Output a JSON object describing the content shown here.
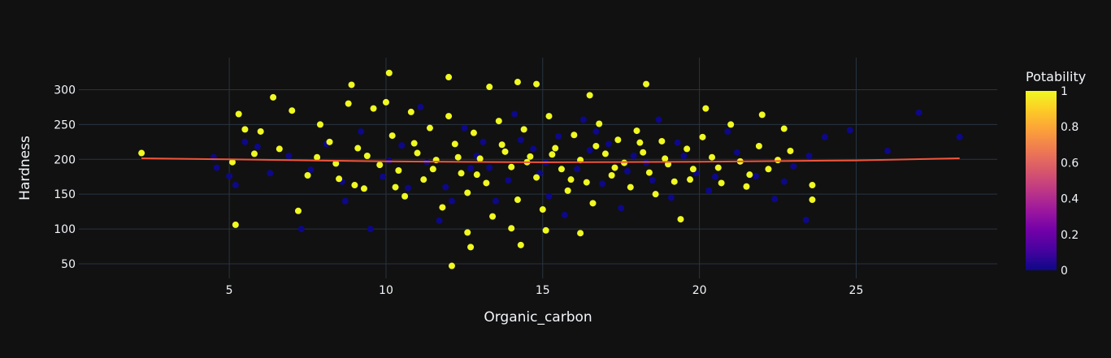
{
  "chart_data": {
    "type": "scatter",
    "xlabel": "Organic_carbon",
    "ylabel": "Hardness",
    "xlim": [
      0.2,
      29.5
    ],
    "ylim": [
      29,
      346
    ],
    "x_ticks": [
      5,
      10,
      15,
      20,
      25
    ],
    "y_ticks": [
      50,
      100,
      150,
      200,
      250,
      300
    ],
    "grid": true,
    "colorbar": {
      "title": "Potability",
      "ticks": [
        "0",
        "0.2",
        "0.4",
        "0.6",
        "0.8",
        "1"
      ],
      "tick_values": [
        0,
        0.2,
        0.4,
        0.6,
        0.8,
        1
      ],
      "colorscale": [
        "#0d0887",
        "#46039f",
        "#7201a8",
        "#9c179e",
        "#bd3786",
        "#d8576b",
        "#ed7953",
        "#fb9f3a",
        "#fdca26",
        "#f0f921"
      ]
    },
    "point_colors": {
      "0": "#0d0887",
      "1": "#f0f921"
    },
    "trendline": {
      "color": "#ef553b",
      "points": [
        [
          2.2,
          201.5
        ],
        [
          5,
          200
        ],
        [
          10,
          197
        ],
        [
          15,
          195.8
        ],
        [
          20,
          196.5
        ],
        [
          25,
          198.5
        ],
        [
          28.3,
          201.5
        ]
      ]
    },
    "series": [
      {
        "potability": 1,
        "points": [
          [
            2.2,
            209
          ],
          [
            5.2,
            106
          ],
          [
            5.3,
            265
          ],
          [
            5.5,
            243
          ],
          [
            6.0,
            240
          ],
          [
            6.4,
            289
          ],
          [
            7.0,
            270
          ],
          [
            7.2,
            126
          ],
          [
            8.9,
            307
          ],
          [
            10.1,
            324
          ],
          [
            12.0,
            318
          ],
          [
            12.1,
            47
          ],
          [
            12.6,
            95
          ],
          [
            12.7,
            74
          ],
          [
            13.3,
            304
          ],
          [
            14.0,
            101
          ],
          [
            14.2,
            311
          ],
          [
            14.3,
            77
          ],
          [
            14.8,
            308
          ],
          [
            15.1,
            98
          ],
          [
            16.2,
            94
          ],
          [
            16.5,
            292
          ],
          [
            18.3,
            308
          ],
          [
            20.2,
            273
          ],
          [
            22.0,
            264
          ],
          [
            22.7,
            244
          ],
          [
            23.6,
            163
          ],
          [
            23.6,
            142
          ],
          [
            5.1,
            196
          ],
          [
            5.8,
            208
          ],
          [
            6.6,
            215
          ],
          [
            7.5,
            177
          ],
          [
            7.9,
            250
          ],
          [
            8.2,
            225
          ],
          [
            8.5,
            172
          ],
          [
            8.8,
            280
          ],
          [
            9.1,
            216
          ],
          [
            9.3,
            158
          ],
          [
            9.6,
            273
          ],
          [
            9.8,
            192
          ],
          [
            10.0,
            282
          ],
          [
            10.2,
            234
          ],
          [
            10.4,
            184
          ],
          [
            10.6,
            147
          ],
          [
            10.8,
            268
          ],
          [
            11.0,
            209
          ],
          [
            11.2,
            171
          ],
          [
            11.4,
            245
          ],
          [
            11.6,
            199
          ],
          [
            11.8,
            131
          ],
          [
            12.0,
            262
          ],
          [
            12.2,
            222
          ],
          [
            12.4,
            180
          ],
          [
            12.6,
            152
          ],
          [
            12.8,
            238
          ],
          [
            13.0,
            201
          ],
          [
            13.2,
            166
          ],
          [
            13.4,
            118
          ],
          [
            13.6,
            255
          ],
          [
            13.8,
            211
          ],
          [
            14.0,
            189
          ],
          [
            14.2,
            142
          ],
          [
            14.4,
            243
          ],
          [
            14.6,
            204
          ],
          [
            14.8,
            174
          ],
          [
            15.0,
            128
          ],
          [
            15.2,
            262
          ],
          [
            15.4,
            216
          ],
          [
            15.6,
            186
          ],
          [
            15.8,
            155
          ],
          [
            16.0,
            235
          ],
          [
            16.2,
            199
          ],
          [
            16.4,
            167
          ],
          [
            16.6,
            137
          ],
          [
            16.8,
            251
          ],
          [
            17.0,
            208
          ],
          [
            17.2,
            177
          ],
          [
            17.4,
            228
          ],
          [
            17.6,
            195
          ],
          [
            17.8,
            160
          ],
          [
            18.0,
            241
          ],
          [
            18.2,
            210
          ],
          [
            18.4,
            181
          ],
          [
            18.6,
            150
          ],
          [
            18.8,
            226
          ],
          [
            19.0,
            193
          ],
          [
            19.2,
            168
          ],
          [
            19.4,
            114
          ],
          [
            19.6,
            215
          ],
          [
            19.8,
            186
          ],
          [
            20.1,
            232
          ],
          [
            20.4,
            203
          ],
          [
            20.7,
            166
          ],
          [
            21.0,
            250
          ],
          [
            21.3,
            197
          ],
          [
            21.6,
            178
          ],
          [
            21.9,
            219
          ],
          [
            22.2,
            186
          ],
          [
            22.5,
            199
          ],
          [
            22.9,
            212
          ],
          [
            8.4,
            194
          ],
          [
            9.0,
            163
          ],
          [
            9.4,
            205
          ],
          [
            10.9,
            223
          ],
          [
            11.5,
            186
          ],
          [
            12.3,
            203
          ],
          [
            12.9,
            178
          ],
          [
            13.7,
            221
          ],
          [
            14.5,
            196
          ],
          [
            15.3,
            207
          ],
          [
            15.9,
            171
          ],
          [
            16.7,
            219
          ],
          [
            17.3,
            188
          ],
          [
            18.1,
            224
          ],
          [
            18.9,
            201
          ],
          [
            19.7,
            171
          ],
          [
            20.6,
            188
          ],
          [
            21.5,
            161
          ],
          [
            7.8,
            203
          ],
          [
            10.3,
            160
          ]
        ]
      },
      {
        "potability": 0,
        "points": [
          [
            4.5,
            203
          ],
          [
            4.6,
            188
          ],
          [
            5.0,
            176
          ],
          [
            5.2,
            163
          ],
          [
            5.9,
            218
          ],
          [
            6.9,
            205
          ],
          [
            7.3,
            100
          ],
          [
            8.1,
            222
          ],
          [
            8.7,
            140
          ],
          [
            9.5,
            100
          ],
          [
            10.5,
            220
          ],
          [
            10.7,
            159
          ],
          [
            11.1,
            275
          ],
          [
            11.3,
            196
          ],
          [
            11.7,
            112
          ],
          [
            12.5,
            245
          ],
          [
            12.7,
            187
          ],
          [
            13.1,
            225
          ],
          [
            13.5,
            140
          ],
          [
            13.9,
            170
          ],
          [
            14.1,
            265
          ],
          [
            14.7,
            215
          ],
          [
            15.2,
            147
          ],
          [
            15.5,
            233
          ],
          [
            15.7,
            120
          ],
          [
            16.1,
            186
          ],
          [
            16.3,
            257
          ],
          [
            16.9,
            165
          ],
          [
            17.1,
            222
          ],
          [
            17.5,
            130
          ],
          [
            17.9,
            205
          ],
          [
            18.5,
            170
          ],
          [
            18.7,
            257
          ],
          [
            19.1,
            145
          ],
          [
            19.3,
            224
          ],
          [
            19.9,
            180
          ],
          [
            20.3,
            155
          ],
          [
            20.9,
            240
          ],
          [
            21.2,
            210
          ],
          [
            21.8,
            176
          ],
          [
            22.4,
            143
          ],
          [
            23.0,
            190
          ],
          [
            23.4,
            113
          ],
          [
            23.5,
            205
          ],
          [
            24.0,
            232
          ],
          [
            24.8,
            242
          ],
          [
            26.0,
            212
          ],
          [
            27.0,
            267
          ],
          [
            28.3,
            232
          ],
          [
            9.2,
            240
          ],
          [
            9.9,
            175
          ],
          [
            10.1,
            198
          ],
          [
            11.9,
            160
          ],
          [
            12.1,
            140
          ],
          [
            12.9,
            205
          ],
          [
            13.3,
            188
          ],
          [
            14.3,
            228
          ],
          [
            14.9,
            180
          ],
          [
            15.1,
            195
          ],
          [
            16.5,
            213
          ],
          [
            16.7,
            240
          ],
          [
            17.7,
            183
          ],
          [
            18.3,
            195
          ],
          [
            19.5,
            205
          ],
          [
            20.5,
            175
          ],
          [
            8.6,
            168
          ],
          [
            7.6,
            185
          ],
          [
            6.3,
            180
          ],
          [
            5.5,
            225
          ],
          [
            22.7,
            168
          ]
        ]
      }
    ]
  }
}
